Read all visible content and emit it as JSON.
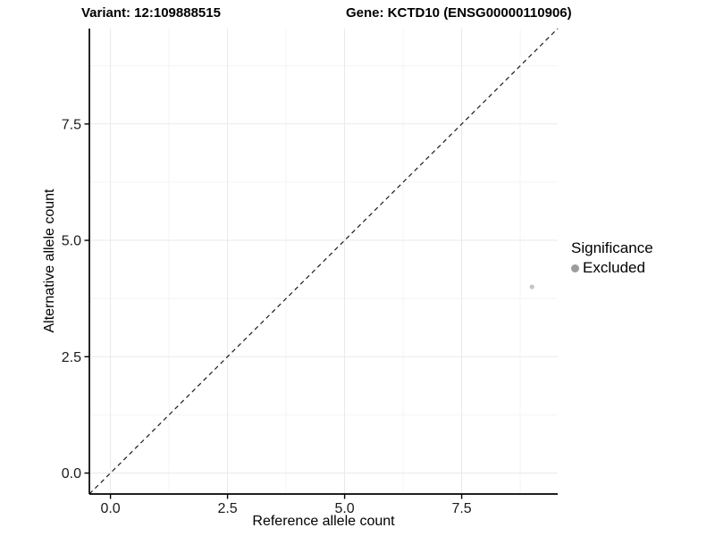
{
  "chart_data": {
    "type": "scatter",
    "titles": {
      "left": "Variant: 12:109888515",
      "right": "Gene: KCTD10 (ENSG00000110906)"
    },
    "xlabel": "Reference allele count",
    "ylabel": "Alternative allele count",
    "xlim": [
      -0.45,
      9.55
    ],
    "ylim": [
      -0.45,
      9.55
    ],
    "x_major_ticks": [
      0,
      2.5,
      5,
      7.5
    ],
    "x_tick_labels": [
      "0.0",
      "2.5",
      "5.0",
      "7.5"
    ],
    "x_minor_ticks": [
      1.25,
      3.75,
      6.25,
      8.75
    ],
    "y_major_ticks": [
      0,
      2.5,
      5,
      7.5
    ],
    "y_tick_labels": [
      "0.0",
      "2.5",
      "5.0",
      "7.5"
    ],
    "y_minor_ticks": [
      1.25,
      3.75,
      6.25,
      8.75
    ],
    "grid": true,
    "series": [
      {
        "name": "Excluded",
        "points": [
          {
            "x": 9,
            "y": 4
          }
        ]
      }
    ],
    "reference_line": {
      "type": "identity",
      "equation": "y = x",
      "style": "dashed"
    },
    "legend": {
      "title": "Significance",
      "position": "right",
      "entries": [
        {
          "label": "Excluded",
          "color": "#9C9C9C"
        }
      ]
    },
    "colors": {
      "background": "#FFFFFF",
      "point": "#C4C4C4",
      "grid_major": "#E9E9E9",
      "grid_minor": "#F4F4F4",
      "axis": "#000000",
      "reference_line": "#1A1A1A",
      "tick_label": "#1A1A1A"
    }
  }
}
